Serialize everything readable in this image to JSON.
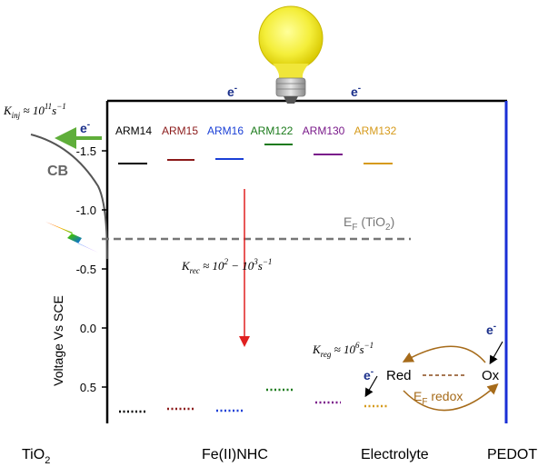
{
  "electron_label": "e",
  "electron_sup": "-",
  "k_inj": {
    "sym": "K",
    "sub": "inj",
    "rest": " ≈ 10",
    "exp": "11",
    "unit": "s",
    "unit_exp": "−1"
  },
  "k_rec": {
    "sym": "K",
    "sub": "rec",
    "rest": " ≈ 10",
    "exp": "2",
    "mid": " − 10",
    "exp2": "3",
    "unit": "s",
    "unit_exp": "−1"
  },
  "k_reg": {
    "sym": "K",
    "sub": "reg",
    "rest": " ≈ 10",
    "exp": "6",
    "unit": "s",
    "unit_exp": "−1"
  },
  "cb_label": "CB",
  "ef_tio2": {
    "main": "E",
    "sub": "F",
    "rest": " (TiO",
    "sub2": "2",
    "close": ")"
  },
  "ef_redox": {
    "main": "E",
    "sub": "F",
    "rest": " redox"
  },
  "red_label": "Red",
  "ox_label": "Ox",
  "y_axis_title": "Voltage Vs SCE",
  "y_ticks": [
    "-1.5",
    "-1.0",
    "-0.5",
    "0.0",
    "0.5"
  ],
  "bottom_labels": {
    "tio2_main": "TiO",
    "tio2_sub": "2",
    "dye": "Fe(II)NHC",
    "electrolyte": "Electrolyte",
    "pedot": "PEDOT"
  },
  "dyes": [
    {
      "name": "ARM14",
      "color": "#000000"
    },
    {
      "name": "ARM15",
      "color": "#8b1a1a"
    },
    {
      "name": "ARM16",
      "color": "#1a3fd6"
    },
    {
      "name": "ARM122",
      "color": "#1a7a1a"
    },
    {
      "name": "ARM130",
      "color": "#7a1a8a"
    },
    {
      "name": "ARM132",
      "color": "#d69a1a"
    }
  ]
}
